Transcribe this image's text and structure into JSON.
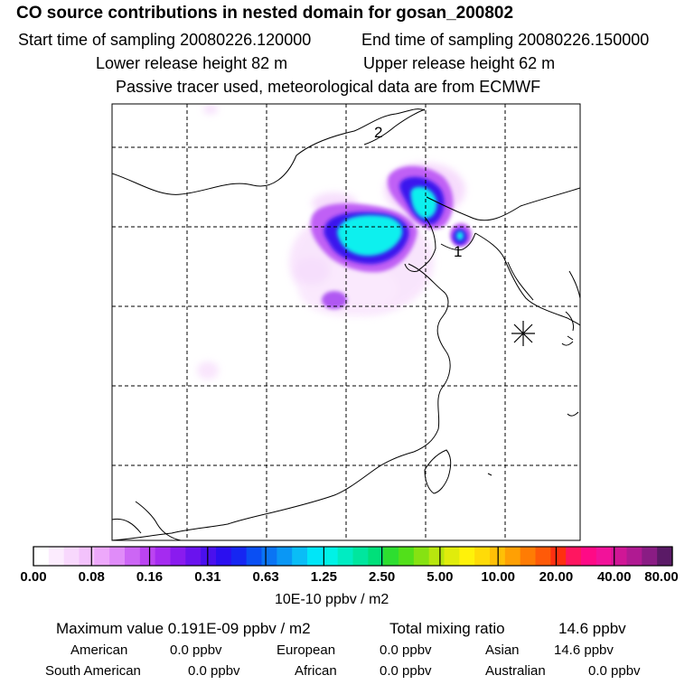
{
  "header": {
    "title": "CO  source contributions in nested domain for gosan_200802",
    "start_label": "Start time of sampling 20080226.120000",
    "end_label": "End time of sampling 20080226.150000",
    "lower_label": "Lower release height   82 m",
    "upper_label": "Upper release height   62 m",
    "note": "Passive tracer used, meteorological data are from ECMWF"
  },
  "map": {
    "site_labels": [
      "1",
      "2"
    ]
  },
  "colorbar": {
    "ticks": [
      "0.00",
      "0.08",
      "0.16",
      "0.31",
      "0.63",
      "1.25",
      "2.50",
      "5.00",
      "10.00",
      "20.00",
      "40.00",
      "80.00"
    ],
    "unit": "10E-10 ppbv / m2",
    "colors": [
      "#ffffff",
      "#fcecfe",
      "#f8d8fd",
      "#f3c2fc",
      "#eda8fb",
      "#e08cf9",
      "#cc66f5",
      "#bb44f2",
      "#a52bf0",
      "#8a1bef",
      "#6a13ee",
      "#4a10ee",
      "#2b0ff0",
      "#1626f2",
      "#0a4ff3",
      "#0a74f4",
      "#0a97f5",
      "#0abdf6",
      "#00e6f8",
      "#00f2e6",
      "#00ecc2",
      "#00e69e",
      "#00e07a",
      "#2ede30",
      "#52e01a",
      "#86e212",
      "#b8e60e",
      "#e0ec0c",
      "#fff20a",
      "#ffdb08",
      "#ffc006",
      "#ffa004",
      "#ff7c04",
      "#ff5a08",
      "#ff3010",
      "#ff1660",
      "#ff0a86",
      "#f2129a",
      "#d01696",
      "#b01a92",
      "#8a1c84",
      "#5a1a66"
    ]
  },
  "summary": {
    "max_label": "Maximum value  0.191E-09 ppbv / m2",
    "total_label": "Total mixing ratio",
    "total_value": "14.6 ppbv",
    "american_label": "American",
    "american_value": "0.0 ppbv",
    "european_label": "European",
    "european_value": "0.0 ppbv",
    "asian_label": "Asian",
    "asian_value": "14.6 ppbv",
    "south_american_label": "South American",
    "south_american_value": "0.0 ppbv",
    "african_label": "African",
    "african_value": "0.0 ppbv",
    "australian_label": "Australian",
    "australian_value": "0.0 ppbv"
  }
}
